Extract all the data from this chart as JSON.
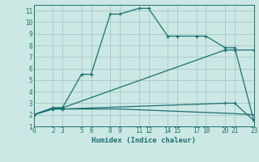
{
  "xlabel": "Humidex (Indice chaleur)",
  "bg_color": "#cce8e4",
  "grid_color": "#aacccc",
  "line_color": "#1a7070",
  "line1_x": [
    0,
    2,
    3,
    5,
    6,
    8,
    9,
    11,
    12,
    14,
    15,
    17,
    18,
    20,
    21,
    23
  ],
  "line1_y": [
    2.0,
    2.6,
    2.6,
    5.5,
    5.5,
    10.7,
    10.7,
    11.2,
    11.2,
    8.8,
    8.8,
    8.8,
    8.8,
    7.8,
    7.8,
    1.5
  ],
  "line2_x": [
    0,
    2,
    3,
    20,
    21,
    23
  ],
  "line2_y": [
    2.0,
    2.6,
    2.6,
    7.6,
    7.6,
    7.6
  ],
  "line3_x": [
    0,
    2,
    3,
    9,
    12,
    15,
    18,
    21,
    23
  ],
  "line3_y": [
    2.0,
    2.5,
    2.5,
    2.5,
    2.4,
    2.3,
    2.2,
    2.1,
    2.0
  ],
  "line4_x": [
    0,
    2,
    3,
    20,
    21,
    23
  ],
  "line4_y": [
    2.0,
    2.5,
    2.5,
    3.0,
    3.0,
    1.5
  ],
  "xlim": [
    0,
    23
  ],
  "ylim": [
    1,
    11.5
  ],
  "xticks": [
    0,
    2,
    3,
    5,
    6,
    8,
    9,
    11,
    12,
    14,
    15,
    17,
    18,
    20,
    21,
    23
  ],
  "yticks": [
    1,
    2,
    3,
    4,
    5,
    6,
    7,
    8,
    9,
    10,
    11
  ],
  "xtick_labels": [
    "0",
    "2",
    "3",
    "5",
    "6",
    "8",
    "9",
    "11",
    "12",
    "14",
    "15",
    "17",
    "18",
    "20",
    "21",
    "23"
  ]
}
